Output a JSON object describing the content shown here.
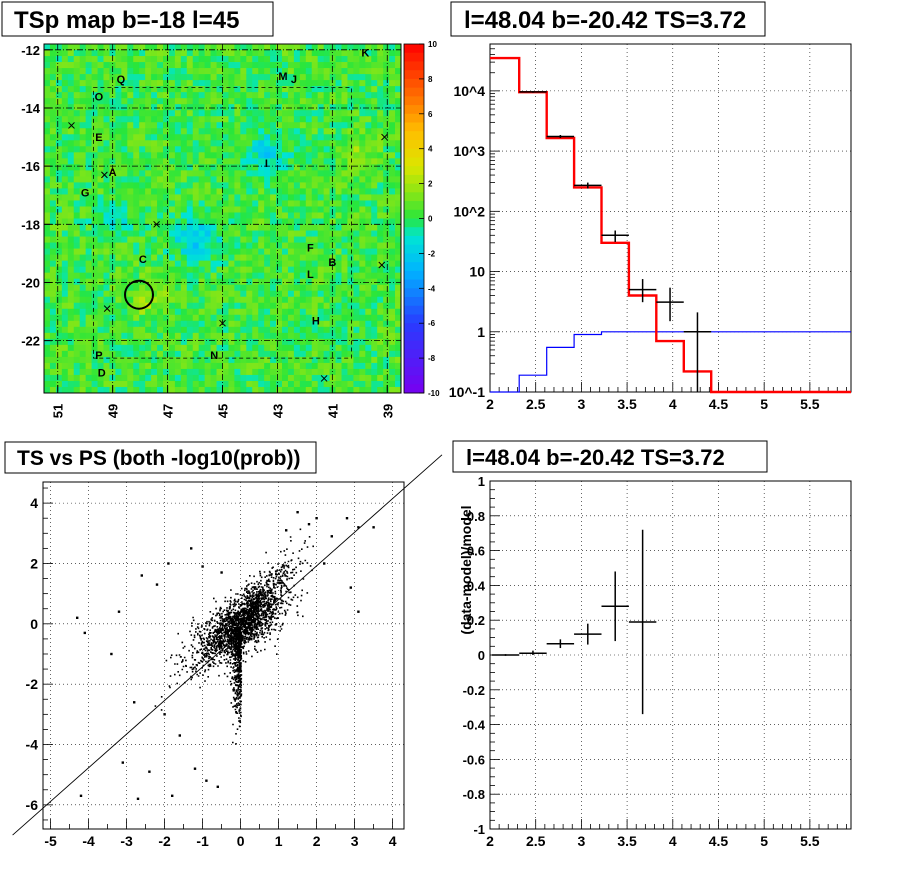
{
  "chart_data": [
    {
      "type": "heatmap",
      "title": "TSp map b=-18 l=45",
      "xlim": [
        51.5,
        38.5
      ],
      "ylim": [
        -23.8,
        -11.8
      ],
      "x_ticks": [
        "51",
        "49",
        "47",
        "45",
        "43",
        "41",
        "39"
      ],
      "y_ticks": [
        "-12",
        "-14",
        "-16",
        "-18",
        "-20",
        "-22"
      ],
      "colorbar": {
        "min": -10,
        "max": 10,
        "ticks": [
          "10",
          "8",
          "6",
          "4",
          "2",
          "0",
          "-2",
          "-4",
          "-6",
          "-8",
          "-10"
        ]
      },
      "labels": [
        {
          "text": "K",
          "l": 39.8,
          "b": -12.1
        },
        {
          "text": "Q",
          "l": 48.7,
          "b": -13.0
        },
        {
          "text": "M",
          "l": 42.8,
          "b": -12.9
        },
        {
          "text": "J",
          "l": 42.4,
          "b": -13.0
        },
        {
          "text": "O",
          "l": 49.5,
          "b": -13.6
        },
        {
          "text": "E",
          "l": 49.5,
          "b": -15.0
        },
        {
          "text": "A",
          "l": 49.0,
          "b": -16.2
        },
        {
          "text": "I",
          "l": 43.4,
          "b": -15.9
        },
        {
          "text": "G",
          "l": 50.0,
          "b": -16.9
        },
        {
          "text": "C",
          "l": 47.9,
          "b": -19.2
        },
        {
          "text": "F",
          "l": 41.8,
          "b": -18.8
        },
        {
          "text": "B",
          "l": 41.0,
          "b": -19.3
        },
        {
          "text": "L",
          "l": 41.8,
          "b": -19.7
        },
        {
          "text": "H",
          "l": 41.6,
          "b": -21.3
        },
        {
          "text": "P",
          "l": 49.5,
          "b": -22.5
        },
        {
          "text": "N",
          "l": 45.3,
          "b": -22.5
        },
        {
          "text": "D",
          "l": 49.4,
          "b": -23.1
        }
      ],
      "crosses": [
        {
          "l": 50.5,
          "b": -14.6
        },
        {
          "l": 49.3,
          "b": -16.3
        },
        {
          "l": 47.4,
          "b": -18.0
        },
        {
          "l": 49.2,
          "b": -20.9
        },
        {
          "l": 45.0,
          "b": -21.4
        },
        {
          "l": 41.3,
          "b": -23.3
        },
        {
          "l": 39.2,
          "b": -19.4
        },
        {
          "l": 39.1,
          "b": -15.0
        }
      ],
      "circle": {
        "l": 48.04,
        "b": -20.42,
        "r": 0.5
      }
    },
    {
      "type": "line",
      "title": "l=48.04 b=-20.42 TS=3.72",
      "xlim": [
        2,
        5.95
      ],
      "ylim": [
        0.1,
        60000
      ],
      "yscale": "log",
      "x_ticks": [
        "2",
        "2.5",
        "3",
        "3.5",
        "4",
        "4.5",
        "5",
        "5.5"
      ],
      "y_ticks": [
        "10^-1",
        "1",
        "10",
        "10^2",
        "10^3",
        "10^4"
      ],
      "bin_edges": [
        2.0,
        2.32,
        2.62,
        2.92,
        3.22,
        3.52,
        3.82,
        4.12,
        4.42,
        4.72,
        5.02,
        5.32,
        5.62,
        5.95
      ],
      "model_values": [
        35000,
        9500,
        1650,
        250,
        30,
        4.0,
        0.7,
        0.22,
        0.1,
        0.1,
        0.1,
        0.1,
        0.1
      ],
      "background_values": [
        0.1,
        0.19,
        0.55,
        0.9,
        1.0,
        1.0,
        1.0,
        1.0,
        1.0,
        1.0,
        1.0,
        1.0,
        1.0
      ],
      "data_points": [
        {
          "x": 2.47,
          "xerr": 0.15,
          "y": 9600,
          "ylo": 9300,
          "yhi": 9900
        },
        {
          "x": 2.77,
          "xerr": 0.15,
          "y": 1750,
          "ylo": 1650,
          "yhi": 1850
        },
        {
          "x": 3.07,
          "xerr": 0.15,
          "y": 270,
          "ylo": 240,
          "yhi": 300
        },
        {
          "x": 3.37,
          "xerr": 0.15,
          "y": 40,
          "ylo": 31,
          "yhi": 48
        },
        {
          "x": 3.67,
          "xerr": 0.15,
          "y": 5.0,
          "ylo": 3.1,
          "yhi": 7.5
        },
        {
          "x": 3.97,
          "xerr": 0.15,
          "y": 3.1,
          "ylo": 1.5,
          "yhi": 5.4
        },
        {
          "x": 4.27,
          "xerr": 0.15,
          "y": 1.0,
          "ylo": 0.1,
          "yhi": 2.1
        }
      ],
      "colors": {
        "model": "#ff0000",
        "background": "#0000ff",
        "data": "#000000"
      }
    },
    {
      "type": "scatter",
      "title": "TS vs PS (both -log10(prob))",
      "xlim": [
        -5.2,
        4.3
      ],
      "ylim": [
        -6.8,
        4.7
      ],
      "x_ticks": [
        "-5",
        "-4",
        "-3",
        "-2",
        "-1",
        "0",
        "1",
        "2",
        "3",
        "4"
      ],
      "y_ticks": [
        "4",
        "2",
        "0",
        "-2",
        "-4",
        "-6"
      ],
      "diagonal": {
        "x1": -6.0,
        "y1": -7.0,
        "x2": 5.3,
        "y2": 5.6
      },
      "outliers": [
        {
          "x": -4.3,
          "y": 0.2
        },
        {
          "x": -4.1,
          "y": -0.3
        },
        {
          "x": -3.4,
          "y": -1.0
        },
        {
          "x": -3.2,
          "y": 0.4
        },
        {
          "x": -2.8,
          "y": -2.6
        },
        {
          "x": -4.2,
          "y": -5.7
        },
        {
          "x": -2.7,
          "y": -5.8
        },
        {
          "x": -1.8,
          "y": -5.7
        },
        {
          "x": -3.1,
          "y": -4.6
        },
        {
          "x": -2.4,
          "y": -4.9
        },
        {
          "x": -2.6,
          "y": 1.6
        },
        {
          "x": -2.2,
          "y": 1.3
        },
        {
          "x": -1.9,
          "y": 2.0
        },
        {
          "x": -1.3,
          "y": 2.5
        },
        {
          "x": -1.6,
          "y": -3.7
        },
        {
          "x": -1.2,
          "y": -4.8
        },
        {
          "x": 1.5,
          "y": 3.7
        },
        {
          "x": 1.8,
          "y": 3.3
        },
        {
          "x": 2.0,
          "y": 3.5
        },
        {
          "x": 2.4,
          "y": 2.9
        },
        {
          "x": 2.8,
          "y": 3.5
        },
        {
          "x": 3.1,
          "y": 3.2
        },
        {
          "x": 3.5,
          "y": 3.2
        },
        {
          "x": 3.1,
          "y": 0.4
        },
        {
          "x": 2.9,
          "y": 1.2
        },
        {
          "x": 2.2,
          "y": 2.0
        },
        {
          "x": 1.2,
          "y": 3.1
        },
        {
          "x": -0.9,
          "y": -5.2
        },
        {
          "x": -0.6,
          "y": -5.4
        },
        {
          "x": -2.0,
          "y": -3.0
        },
        {
          "x": -1.0,
          "y": 1.9
        },
        {
          "x": -0.5,
          "y": 1.7
        }
      ]
    },
    {
      "type": "scatter",
      "title": "l=48.04 b=-20.42 TS=3.72",
      "ylabel": "(data-model)/model",
      "xlim": [
        2,
        5.95
      ],
      "ylim": [
        -1,
        1
      ],
      "x_ticks": [
        "2",
        "2.5",
        "3",
        "3.5",
        "4",
        "4.5",
        "5",
        "5.5"
      ],
      "y_ticks": [
        "1",
        "0.8",
        "0.6",
        "0.4",
        "0.2",
        "0",
        "-0.2",
        "-0.4",
        "-0.6",
        "-0.8",
        "-1"
      ],
      "data_points": [
        {
          "x": 2.17,
          "xerr": 0.15,
          "y": 0.0,
          "ylo": -0.005,
          "yhi": 0.005
        },
        {
          "x": 2.47,
          "xerr": 0.15,
          "y": 0.01,
          "ylo": 0.0,
          "yhi": 0.025
        },
        {
          "x": 2.77,
          "xerr": 0.15,
          "y": 0.065,
          "ylo": 0.04,
          "yhi": 0.09
        },
        {
          "x": 3.07,
          "xerr": 0.15,
          "y": 0.12,
          "ylo": 0.06,
          "yhi": 0.18
        },
        {
          "x": 3.37,
          "xerr": 0.15,
          "y": 0.28,
          "ylo": 0.08,
          "yhi": 0.48
        },
        {
          "x": 3.67,
          "xerr": 0.15,
          "y": 0.19,
          "ylo": -0.34,
          "yhi": 0.72
        }
      ]
    }
  ]
}
